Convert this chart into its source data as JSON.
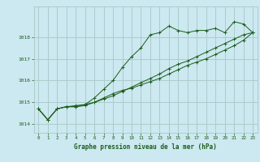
{
  "title": "Graphe pression niveau de la mer (hPa)",
  "bg_color": "#cce8f0",
  "grid_color": "#aacccc",
  "line_color": "#1a5c1a",
  "marker_color": "#1a5c1a",
  "xlim": [
    -0.5,
    23.5
  ],
  "ylim": [
    1013.6,
    1019.4
  ],
  "yticks": [
    1014,
    1015,
    1016,
    1017,
    1018
  ],
  "xticks": [
    0,
    1,
    2,
    3,
    4,
    5,
    6,
    7,
    8,
    9,
    10,
    11,
    12,
    13,
    14,
    15,
    16,
    17,
    18,
    19,
    20,
    21,
    22,
    23
  ],
  "series1": [
    1014.7,
    1014.2,
    1014.7,
    1014.8,
    1014.8,
    1014.9,
    1015.2,
    1015.6,
    1016.0,
    1016.6,
    1017.1,
    1017.5,
    1018.1,
    1018.2,
    1018.5,
    1018.3,
    1018.2,
    1018.3,
    1018.3,
    1018.4,
    1018.2,
    1018.7,
    1018.6,
    1018.2
  ],
  "series2": [
    1014.7,
    1014.2,
    1014.7,
    1014.8,
    1014.8,
    1014.85,
    1015.0,
    1015.2,
    1015.4,
    1015.55,
    1015.65,
    1015.8,
    1015.95,
    1016.1,
    1016.3,
    1016.5,
    1016.7,
    1016.85,
    1017.0,
    1017.2,
    1017.4,
    1017.6,
    1017.85,
    1018.2
  ],
  "series3": [
    1014.7,
    1014.2,
    1014.7,
    1014.8,
    1014.85,
    1014.9,
    1015.0,
    1015.15,
    1015.3,
    1015.5,
    1015.7,
    1015.9,
    1016.1,
    1016.3,
    1016.55,
    1016.75,
    1016.9,
    1017.1,
    1017.3,
    1017.5,
    1017.7,
    1017.9,
    1018.1,
    1018.2
  ]
}
